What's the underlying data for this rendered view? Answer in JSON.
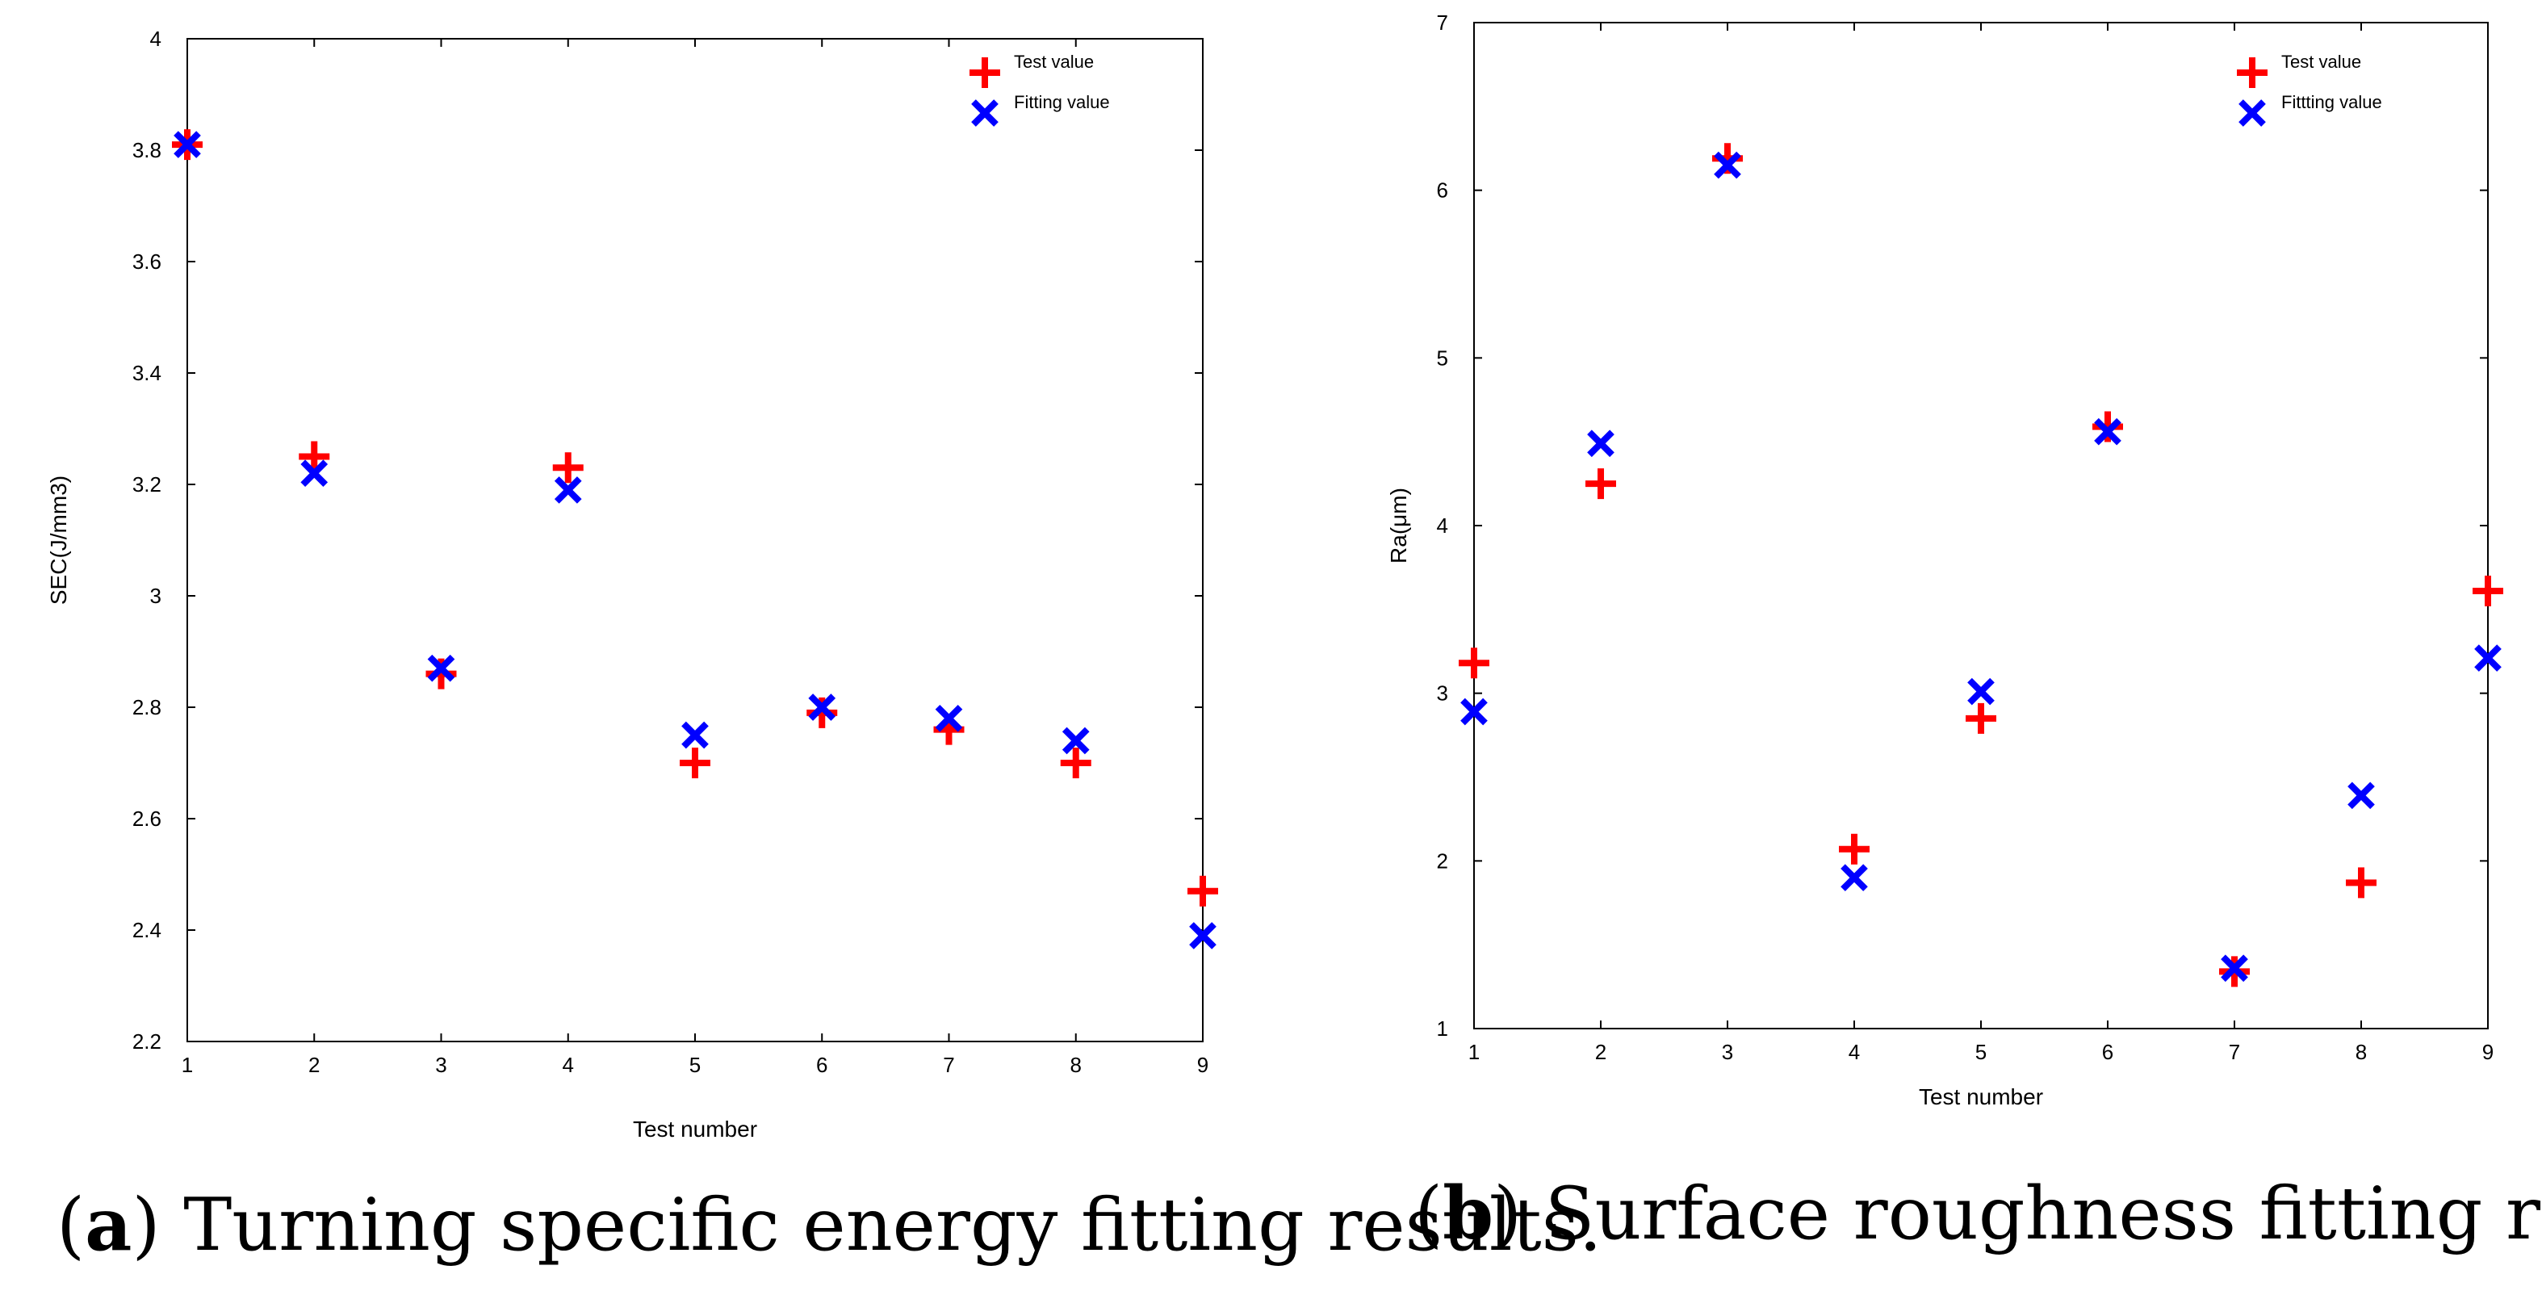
{
  "chart_data": [
    {
      "type": "scatter",
      "caption_letter": "a",
      "caption_text": "Turning specific energy fitting results.",
      "xlabel": "Test number",
      "ylabel": "SEC(J/mm3)",
      "xlim": [
        1,
        9
      ],
      "ylim": [
        2.2,
        4
      ],
      "xticks": [
        1,
        2,
        3,
        4,
        5,
        6,
        7,
        8,
        9
      ],
      "yticks": [
        2.2,
        2.4,
        2.6,
        2.8,
        3,
        3.2,
        3.4,
        3.6,
        3.8,
        4
      ],
      "ytick_labels": [
        "2.2",
        "2.4",
        "2.6",
        "2.8",
        "3",
        "3.2",
        "3.4",
        "3.6",
        "3.8",
        "4"
      ],
      "legend_position": "top-right",
      "x": [
        1,
        2,
        3,
        4,
        5,
        6,
        7,
        8,
        9
      ],
      "series": [
        {
          "name": "Test value",
          "marker": "plus",
          "color": "#ff0000",
          "values": [
            3.81,
            3.25,
            2.86,
            3.23,
            2.7,
            2.79,
            2.76,
            2.7,
            2.47
          ]
        },
        {
          "name": "Fitting value",
          "marker": "cross",
          "color": "#0000ff",
          "values": [
            3.81,
            3.22,
            2.87,
            3.19,
            2.75,
            2.8,
            2.78,
            2.74,
            2.39
          ]
        }
      ]
    },
    {
      "type": "scatter",
      "caption_letter": "b",
      "caption_text": "Surface roughness fitting results.",
      "xlabel": "Test number",
      "ylabel": "Ra(μm)",
      "xlim": [
        1,
        9
      ],
      "ylim": [
        1,
        7
      ],
      "xticks": [
        1,
        2,
        3,
        4,
        5,
        6,
        7,
        8,
        9
      ],
      "yticks": [
        1,
        2,
        3,
        4,
        5,
        6,
        7
      ],
      "ytick_labels": [
        "1",
        "2",
        "3",
        "4",
        "5",
        "6",
        "7"
      ],
      "legend_position": "top-right",
      "x": [
        1,
        2,
        3,
        4,
        5,
        6,
        7,
        8,
        9
      ],
      "series": [
        {
          "name": "Test value",
          "marker": "plus",
          "color": "#ff0000",
          "values": [
            3.18,
            4.25,
            6.19,
            2.07,
            2.85,
            4.59,
            1.34,
            1.87,
            3.61
          ]
        },
        {
          "name": "Fittting value",
          "marker": "cross",
          "color": "#0000ff",
          "values": [
            2.89,
            4.49,
            6.15,
            1.9,
            3.01,
            4.56,
            1.36,
            2.39,
            3.21
          ]
        }
      ]
    }
  ]
}
